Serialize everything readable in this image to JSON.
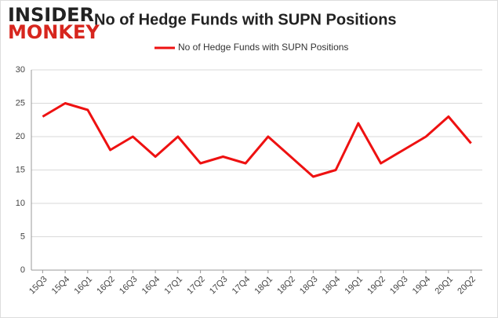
{
  "logo": {
    "line1": "INSIDER",
    "line2": "MONKEY"
  },
  "chart_data": {
    "type": "line",
    "title": "No of Hedge Funds with SUPN Positions",
    "categories": [
      "15Q3",
      "15Q4",
      "16Q1",
      "16Q2",
      "16Q3",
      "16Q4",
      "17Q1",
      "17Q2",
      "17Q3",
      "17Q4",
      "18Q1",
      "18Q2",
      "18Q3",
      "18Q4",
      "19Q1",
      "19Q2",
      "19Q3",
      "19Q4",
      "20Q1",
      "20Q2"
    ],
    "series": [
      {
        "name": "No of Hedge Funds with SUPN Positions",
        "color": "#ee1111",
        "values": [
          23,
          25,
          24,
          18,
          20,
          17,
          20,
          16,
          17,
          16,
          20,
          17,
          14,
          15,
          22,
          16,
          18,
          20,
          23,
          19
        ]
      }
    ],
    "ylim": [
      0,
      30
    ],
    "yticks": [
      0,
      5,
      10,
      15,
      20,
      25,
      30
    ],
    "grid": true,
    "legend": "top"
  }
}
